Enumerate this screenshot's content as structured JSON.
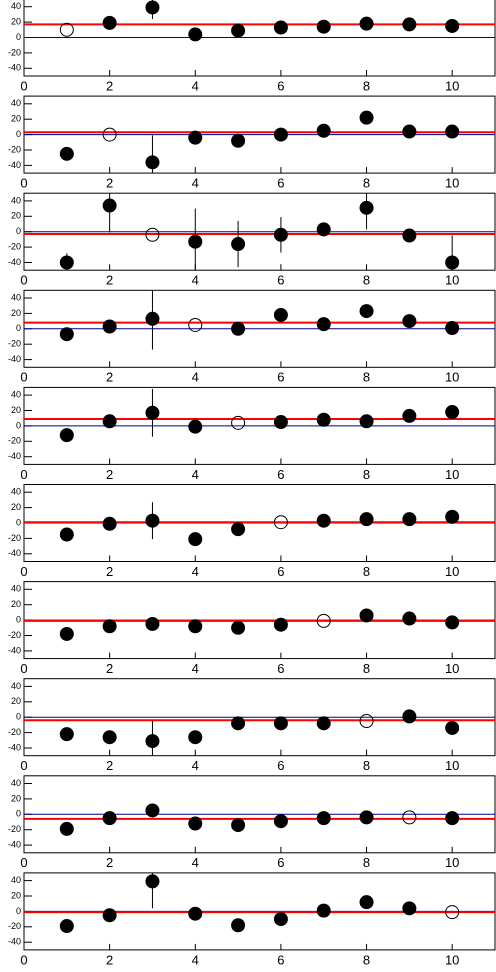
{
  "chart_data": [
    {
      "type": "scatter",
      "x": [
        1,
        2,
        3,
        4,
        5,
        6,
        7,
        8,
        9,
        10
      ],
      "values": [
        10,
        19,
        39,
        4,
        9,
        13,
        14,
        18,
        17,
        15
      ],
      "errors": [
        null,
        null,
        15,
        null,
        null,
        null,
        null,
        null,
        null,
        null
      ],
      "open_index": 0,
      "fit": 17,
      "reference": 0,
      "fit_color": "#ff0000",
      "reference_color": "#00008b",
      "marker_color": "#000000",
      "xlim": [
        0,
        11
      ],
      "ylim": [
        -50,
        50
      ],
      "xticks": [
        0,
        2,
        4,
        6,
        8,
        10
      ],
      "yticks": [
        -40,
        -20,
        0,
        20,
        40
      ]
    },
    {
      "type": "scatter",
      "x": [
        1,
        2,
        3,
        4,
        5,
        6,
        7,
        8,
        9,
        10
      ],
      "values": [
        -25,
        0,
        -36,
        -4,
        -8,
        0,
        5,
        22,
        4,
        4
      ],
      "errors": [
        null,
        null,
        35,
        null,
        null,
        null,
        null,
        null,
        null,
        null
      ],
      "open_index": 1,
      "fit": 3,
      "reference": 0,
      "fit_color": "#ff0000",
      "reference_color": "#00008b",
      "marker_color": "#000000",
      "xlim": [
        0,
        11
      ],
      "ylim": [
        -50,
        50
      ],
      "xticks": [
        0,
        2,
        4,
        6,
        8,
        10
      ],
      "yticks": [
        -40,
        -20,
        0,
        20,
        40
      ]
    },
    {
      "type": "scatter",
      "x": [
        1,
        2,
        3,
        4,
        5,
        6,
        7,
        8,
        9,
        10
      ],
      "values": [
        -40,
        34,
        -4,
        -13,
        -16,
        -4,
        3,
        31,
        -5,
        -40
      ],
      "errors": [
        12,
        35,
        null,
        43,
        30,
        23,
        null,
        28,
        null,
        35
      ],
      "open_index": 2,
      "fit": -3,
      "reference": 0,
      "fit_color": "#ff0000",
      "reference_color": "#00008b",
      "marker_color": "#000000",
      "xlim": [
        0,
        11
      ],
      "ylim": [
        -50,
        50
      ],
      "xticks": [
        0,
        2,
        4,
        6,
        8,
        10
      ],
      "yticks": [
        -40,
        -20,
        0,
        20,
        40
      ]
    },
    {
      "type": "scatter",
      "x": [
        1,
        2,
        3,
        4,
        5,
        6,
        7,
        8,
        9,
        10
      ],
      "values": [
        -7,
        3,
        13,
        5,
        0,
        18,
        6,
        23,
        10,
        1
      ],
      "errors": [
        null,
        null,
        40,
        null,
        null,
        null,
        null,
        null,
        null,
        null
      ],
      "open_index": 3,
      "fit": 8,
      "reference": 0,
      "fit_color": "#ff0000",
      "reference_color": "#00008b",
      "marker_color": "#000000",
      "xlim": [
        0,
        11
      ],
      "ylim": [
        -50,
        50
      ],
      "xticks": [
        0,
        2,
        4,
        6,
        8,
        10
      ],
      "yticks": [
        -40,
        -20,
        0,
        20,
        40
      ]
    },
    {
      "type": "scatter",
      "x": [
        1,
        2,
        3,
        4,
        5,
        6,
        7,
        8,
        9,
        10
      ],
      "values": [
        -12,
        6,
        17,
        -1,
        4,
        5,
        8,
        6,
        13,
        18
      ],
      "errors": [
        null,
        null,
        31,
        null,
        null,
        null,
        null,
        null,
        null,
        null
      ],
      "open_index": 4,
      "fit": 9,
      "reference": 0,
      "fit_color": "#ff0000",
      "reference_color": "#00008b",
      "marker_color": "#000000",
      "xlim": [
        0,
        11
      ],
      "ylim": [
        -50,
        50
      ],
      "xticks": [
        0,
        2,
        4,
        6,
        8,
        10
      ],
      "yticks": [
        -40,
        -20,
        0,
        20,
        40
      ]
    },
    {
      "type": "scatter",
      "x": [
        1,
        2,
        3,
        4,
        5,
        6,
        7,
        8,
        9,
        10
      ],
      "values": [
        -15,
        -1,
        3,
        -21,
        -8,
        1,
        3,
        5,
        5,
        8
      ],
      "errors": [
        null,
        null,
        24,
        null,
        null,
        null,
        null,
        null,
        null,
        null
      ],
      "open_index": 5,
      "fit": 1,
      "reference": 0,
      "fit_color": "#ff0000",
      "reference_color": "#00008b",
      "marker_color": "#000000",
      "xlim": [
        0,
        11
      ],
      "ylim": [
        -50,
        50
      ],
      "xticks": [
        0,
        2,
        4,
        6,
        8,
        10
      ],
      "yticks": [
        -40,
        -20,
        0,
        20,
        40
      ]
    },
    {
      "type": "scatter",
      "x": [
        1,
        2,
        3,
        4,
        5,
        6,
        7,
        8,
        9,
        10
      ],
      "values": [
        -18,
        -8,
        -5,
        -8,
        -10,
        -6,
        -1,
        6,
        2,
        -3
      ],
      "errors": [
        null,
        null,
        null,
        null,
        null,
        null,
        null,
        null,
        null,
        null
      ],
      "open_index": 6,
      "fit": -1,
      "reference": 0,
      "fit_color": "#ff0000",
      "reference_color": "#00008b",
      "marker_color": "#000000",
      "xlim": [
        0,
        11
      ],
      "ylim": [
        -50,
        50
      ],
      "xticks": [
        0,
        2,
        4,
        6,
        8,
        10
      ],
      "yticks": [
        -40,
        -20,
        0,
        20,
        40
      ]
    },
    {
      "type": "scatter",
      "x": [
        1,
        2,
        3,
        4,
        5,
        6,
        7,
        8,
        9,
        10
      ],
      "values": [
        -22,
        -26,
        -31,
        -26,
        -8,
        -8,
        -8,
        -5,
        1,
        -14
      ],
      "errors": [
        null,
        null,
        26,
        null,
        null,
        null,
        null,
        null,
        null,
        null
      ],
      "open_index": 7,
      "fit": -4,
      "reference": 0,
      "fit_color": "#ff0000",
      "reference_color": "#00008b",
      "marker_color": "#000000",
      "xlim": [
        0,
        11
      ],
      "ylim": [
        -50,
        50
      ],
      "xticks": [
        0,
        2,
        4,
        6,
        8,
        10
      ],
      "yticks": [
        -40,
        -20,
        0,
        20,
        40
      ]
    },
    {
      "type": "scatter",
      "x": [
        1,
        2,
        3,
        4,
        5,
        6,
        7,
        8,
        9,
        10
      ],
      "values": [
        -19,
        -5,
        5,
        -12,
        -14,
        -9,
        -5,
        -4,
        -4,
        -5
      ],
      "errors": [
        null,
        null,
        null,
        null,
        null,
        null,
        null,
        null,
        null,
        null
      ],
      "open_index": 8,
      "fit": -6,
      "reference": 0,
      "fit_color": "#ff0000",
      "reference_color": "#00008b",
      "marker_color": "#000000",
      "xlim": [
        0,
        11
      ],
      "ylim": [
        -50,
        50
      ],
      "xticks": [
        0,
        2,
        4,
        6,
        8,
        10
      ],
      "yticks": [
        -40,
        -20,
        0,
        20,
        40
      ]
    },
    {
      "type": "scatter",
      "x": [
        1,
        2,
        3,
        4,
        5,
        6,
        7,
        8,
        9,
        10
      ],
      "values": [
        -19,
        -5,
        39,
        -3,
        -18,
        -10,
        1,
        12,
        4,
        -1
      ],
      "errors": [
        null,
        null,
        35,
        null,
        null,
        null,
        null,
        null,
        null,
        null
      ],
      "open_index": 9,
      "fit": -1,
      "reference": 0,
      "fit_color": "#ff0000",
      "reference_color": "#00008b",
      "marker_color": "#000000",
      "xlim": [
        0,
        11
      ],
      "ylim": [
        -50,
        50
      ],
      "xticks": [
        0,
        2,
        4,
        6,
        8,
        10
      ],
      "yticks": [
        -40,
        -20,
        0,
        20,
        40
      ]
    }
  ]
}
